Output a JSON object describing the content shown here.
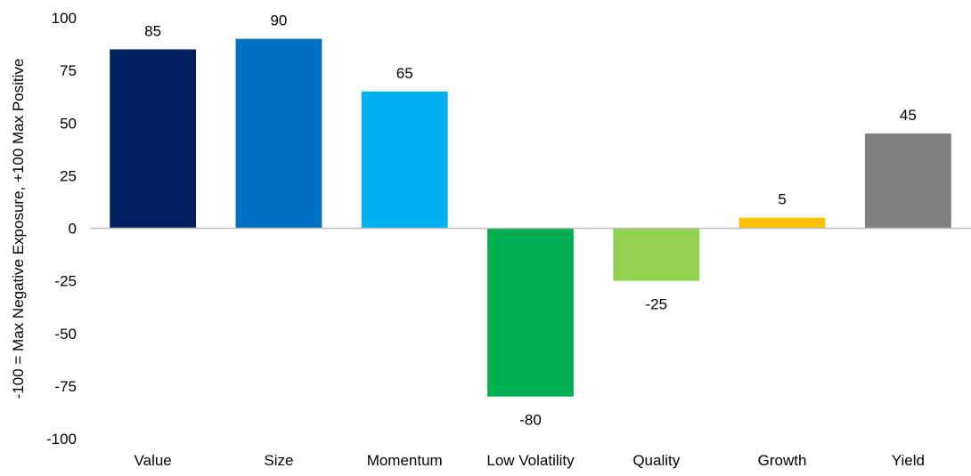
{
  "chart_data": {
    "type": "bar",
    "title": "",
    "xlabel": "",
    "ylabel": "-100 = Max Negative Exposure, +100 Max Positive",
    "categories": [
      "Value",
      "Size",
      "Momentum",
      "Low Volatility",
      "Quality",
      "Growth",
      "Yield"
    ],
    "values": [
      85,
      90,
      65,
      -80,
      -25,
      5,
      45
    ],
    "data_labels": [
      "85",
      "90",
      "65",
      "-80",
      "-25",
      "5",
      "45"
    ],
    "bar_colors": [
      "#002060",
      "#0070C0",
      "#00B0F0",
      "#00B050",
      "#92D050",
      "#FFC000",
      "#808080"
    ],
    "ylim": [
      -100,
      100
    ],
    "yticks": [
      100,
      75,
      50,
      25,
      0,
      -25,
      -50,
      -75,
      -100
    ],
    "ytick_labels": [
      "100",
      "75",
      "50",
      "25",
      "0",
      "-25",
      "-50",
      "-75",
      "-100"
    ],
    "grid": false,
    "legend": "none",
    "zero_line_color": "#BFBFBF"
  }
}
